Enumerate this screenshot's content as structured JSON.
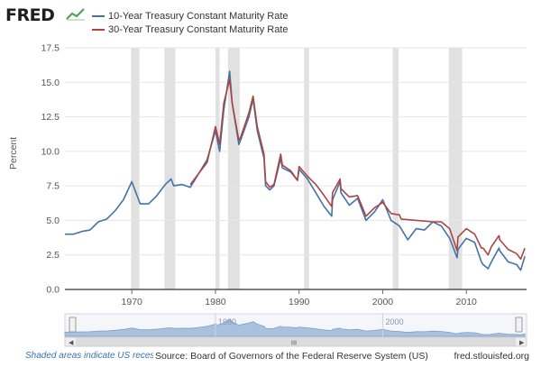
{
  "header": {
    "logo_text": "FRED",
    "logo_icon": "line-chart-icon"
  },
  "footer": {
    "recession_note": "Shaded areas indicate US recessions.",
    "source": "Source: Board of Governors of the Federal Reserve System (US)",
    "site": "fred.stlouisfed.org"
  },
  "navigator": {
    "tick_labels": [
      "1980",
      "2000"
    ],
    "scroll_grip": "III"
  },
  "colors": {
    "series_10y": "#4572a7",
    "series_30y": "#aa4643",
    "recession": "#e1e1e1",
    "grid": "#e6e6e6"
  },
  "chart_data": {
    "type": "line",
    "title": "",
    "xlabel": "",
    "ylabel": "Percent",
    "xlim": [
      1962,
      2017.2
    ],
    "ylim": [
      0,
      17.5
    ],
    "y_ticks": [
      0.0,
      2.5,
      5.0,
      7.5,
      10.0,
      12.5,
      15.0,
      17.5
    ],
    "y_tick_labels": [
      "0.0",
      "2.5",
      "5.0",
      "7.5",
      "10.0",
      "12.5",
      "15.0",
      "17.5"
    ],
    "x_ticks": [
      1970,
      1980,
      1990,
      2000,
      2010
    ],
    "x_tick_labels": [
      "1970",
      "1980",
      "1990",
      "2000",
      "2010"
    ],
    "grid": "horizontal",
    "legend_position": "top-left",
    "recessions": [
      [
        1969.9,
        1970.9
      ],
      [
        1973.9,
        1975.2
      ],
      [
        1980.0,
        1980.5
      ],
      [
        1981.5,
        1982.9
      ],
      [
        1990.6,
        1991.2
      ],
      [
        2001.2,
        2001.9
      ],
      [
        2007.9,
        2009.5
      ]
    ],
    "series": [
      {
        "name": "10-Year Treasury Constant Maturity Rate",
        "color": "#4572a7",
        "points": [
          [
            1962,
            4.0
          ],
          [
            1963,
            4.0
          ],
          [
            1964,
            4.2
          ],
          [
            1965,
            4.3
          ],
          [
            1966,
            4.9
          ],
          [
            1967,
            5.1
          ],
          [
            1968,
            5.7
          ],
          [
            1969,
            6.5
          ],
          [
            1970,
            7.8
          ],
          [
            1970.5,
            7.0
          ],
          [
            1971,
            6.2
          ],
          [
            1972,
            6.2
          ],
          [
            1973,
            6.8
          ],
          [
            1974,
            7.6
          ],
          [
            1974.7,
            8.0
          ],
          [
            1975,
            7.5
          ],
          [
            1976,
            7.6
          ],
          [
            1977,
            7.4
          ],
          [
            1978,
            8.4
          ],
          [
            1979,
            9.4
          ],
          [
            1980,
            11.5
          ],
          [
            1980.5,
            10.0
          ],
          [
            1981,
            13.0
          ],
          [
            1981.7,
            15.8
          ],
          [
            1982,
            13.5
          ],
          [
            1982.8,
            10.5
          ],
          [
            1983,
            10.8
          ],
          [
            1984,
            12.5
          ],
          [
            1984.5,
            13.8
          ],
          [
            1985,
            11.5
          ],
          [
            1985.8,
            9.5
          ],
          [
            1986,
            7.5
          ],
          [
            1986.5,
            7.2
          ],
          [
            1987,
            7.5
          ],
          [
            1987.8,
            9.5
          ],
          [
            1988,
            8.8
          ],
          [
            1989,
            8.5
          ],
          [
            1989.8,
            7.9
          ],
          [
            1990,
            8.7
          ],
          [
            1991,
            8.0
          ],
          [
            1992,
            7.0
          ],
          [
            1993,
            6.0
          ],
          [
            1993.9,
            5.3
          ],
          [
            1994,
            6.5
          ],
          [
            1994.9,
            7.8
          ],
          [
            1995,
            7.0
          ],
          [
            1996,
            6.1
          ],
          [
            1997,
            6.6
          ],
          [
            1998,
            5.0
          ],
          [
            1999,
            5.6
          ],
          [
            2000,
            6.5
          ],
          [
            2001,
            5.0
          ],
          [
            2002,
            4.6
          ],
          [
            2003,
            3.6
          ],
          [
            2004,
            4.4
          ],
          [
            2005,
            4.3
          ],
          [
            2006,
            4.9
          ],
          [
            2007,
            4.6
          ],
          [
            2008,
            3.7
          ],
          [
            2008.9,
            2.3
          ],
          [
            2009,
            2.9
          ],
          [
            2010,
            3.7
          ],
          [
            2011,
            3.4
          ],
          [
            2011.8,
            2.0
          ],
          [
            2012,
            1.8
          ],
          [
            2012.6,
            1.5
          ],
          [
            2013,
            2.0
          ],
          [
            2013.9,
            3.0
          ],
          [
            2014,
            2.8
          ],
          [
            2015,
            2.0
          ],
          [
            2016,
            1.8
          ],
          [
            2016.5,
            1.4
          ],
          [
            2017,
            2.4
          ]
        ]
      },
      {
        "name": "30-Year Treasury Constant Maturity Rate",
        "color": "#aa4643",
        "points": [
          [
            1977,
            7.6
          ],
          [
            1978,
            8.4
          ],
          [
            1979,
            9.2
          ],
          [
            1980,
            11.8
          ],
          [
            1980.5,
            10.5
          ],
          [
            1981,
            13.5
          ],
          [
            1981.7,
            15.2
          ],
          [
            1982,
            13.5
          ],
          [
            1982.8,
            10.8
          ],
          [
            1983,
            11.0
          ],
          [
            1984,
            12.8
          ],
          [
            1984.5,
            14.0
          ],
          [
            1985,
            11.8
          ],
          [
            1985.8,
            9.8
          ],
          [
            1986,
            7.8
          ],
          [
            1986.5,
            7.4
          ],
          [
            1987,
            7.6
          ],
          [
            1987.8,
            9.8
          ],
          [
            1988,
            9.0
          ],
          [
            1989,
            8.6
          ],
          [
            1989.8,
            7.9
          ],
          [
            1990,
            8.9
          ],
          [
            1991,
            8.2
          ],
          [
            1992,
            7.6
          ],
          [
            1993,
            6.8
          ],
          [
            1993.9,
            6.0
          ],
          [
            1994,
            7.0
          ],
          [
            1994.9,
            8.0
          ],
          [
            1995,
            7.3
          ],
          [
            1996,
            6.7
          ],
          [
            1997,
            6.8
          ],
          [
            1998,
            5.3
          ],
          [
            1999,
            5.9
          ],
          [
            2000,
            6.3
          ],
          [
            2001,
            5.5
          ],
          [
            2002,
            5.4
          ],
          [
            2002.2,
            5.1
          ],
          [
            2006,
            4.9
          ],
          [
            2007,
            4.9
          ],
          [
            2008,
            4.4
          ],
          [
            2008.9,
            2.8
          ],
          [
            2009,
            3.8
          ],
          [
            2010,
            4.4
          ],
          [
            2011,
            4.0
          ],
          [
            2011.8,
            3.0
          ],
          [
            2012,
            3.0
          ],
          [
            2012.6,
            2.5
          ],
          [
            2013,
            3.1
          ],
          [
            2013.9,
            3.9
          ],
          [
            2014,
            3.6
          ],
          [
            2015,
            2.9
          ],
          [
            2016,
            2.6
          ],
          [
            2016.5,
            2.2
          ],
          [
            2017,
            3.0
          ]
        ]
      }
    ]
  }
}
